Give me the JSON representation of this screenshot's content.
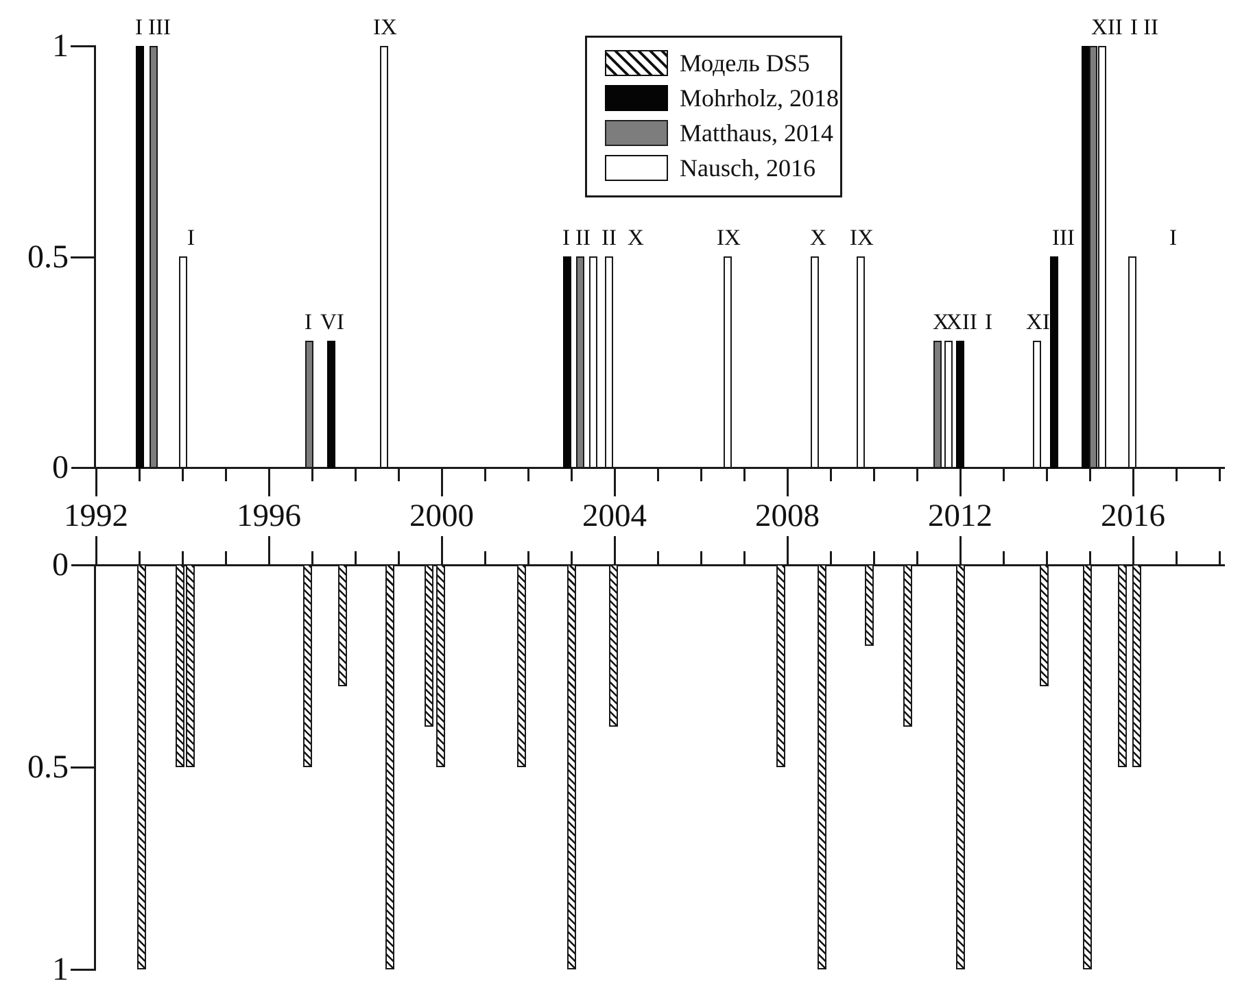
{
  "figure": {
    "background": "#ffffff",
    "colors": {
      "black": "#050505",
      "gray": "#7d7d7d",
      "white": "#ffffff",
      "outline": "#1a1a1a"
    }
  },
  "legend": {
    "items": [
      {
        "key": "model",
        "swatch": "hatched",
        "label": "Модель DS5"
      },
      {
        "key": "mohrholz",
        "swatch": "black",
        "label": "Mohrholz, 2018"
      },
      {
        "key": "matthaus",
        "swatch": "gray",
        "label": "Matthaus, 2014"
      },
      {
        "key": "nausch",
        "swatch": "white",
        "label": "Nausch, 2016"
      }
    ]
  },
  "chart_data": {
    "type": "bar",
    "title": "",
    "xlabel": "",
    "ylabel": "",
    "x_axis": {
      "range": [
        1991.95,
        2018.1
      ],
      "major_ticks": [
        1992,
        1996,
        2000,
        2004,
        2008,
        2012,
        2016
      ],
      "minor_tick_years": [
        1993,
        1994,
        1995,
        1997,
        1998,
        1999,
        2001,
        2002,
        2003,
        2005,
        2006,
        2007,
        2009,
        2010,
        2011,
        2013,
        2014,
        2015,
        2017,
        2018
      ]
    },
    "panels": [
      {
        "id": "upper",
        "orientation": "up",
        "ylim": [
          0,
          1
        ],
        "y_ticks": [
          {
            "v": 1,
            "label": "1"
          },
          {
            "v": 0.5,
            "label": "0.5"
          },
          {
            "v": 0,
            "label": "0"
          }
        ],
        "note": "observed inflow events; bar label = month (Roman numeral)",
        "bars": [
          {
            "x": 1993.02,
            "v": 1.0,
            "series": "mohrholz",
            "label": "I"
          },
          {
            "x": 1993.33,
            "v": 1.0,
            "series": "matthaus",
            "label": "III"
          },
          {
            "x": 1994.02,
            "v": 0.5,
            "series": "nausch",
            "label": "I"
          },
          {
            "x": 1996.93,
            "v": 0.3,
            "series": "matthaus",
            "label": "I"
          },
          {
            "x": 1997.45,
            "v": 0.3,
            "series": "mohrholz",
            "label": "VI"
          },
          {
            "x": 1998.67,
            "v": 1.0,
            "series": "nausch",
            "label": "IX"
          },
          {
            "x": 2002.9,
            "v": 0.5,
            "series": "mohrholz",
            "label": "I"
          },
          {
            "x": 2003.2,
            "v": 0.5,
            "series": "matthaus",
            "label": "II"
          },
          {
            "x": 2003.5,
            "v": 0.5,
            "series": "nausch",
            "label": "II"
          },
          {
            "x": 2003.88,
            "v": 0.5,
            "series": "nausch",
            "label": "X"
          },
          {
            "x": 2006.62,
            "v": 0.5,
            "series": "nausch",
            "label": "IX"
          },
          {
            "x": 2008.64,
            "v": 0.5,
            "series": "nausch",
            "label": "X"
          },
          {
            "x": 2009.7,
            "v": 0.5,
            "series": "nausch",
            "label": "IX"
          },
          {
            "x": 2011.48,
            "v": 0.3,
            "series": "matthaus",
            "label": "X"
          },
          {
            "x": 2011.73,
            "v": 0.3,
            "series": "nausch",
            "label": "XII"
          },
          {
            "x": 2012.0,
            "v": 0.3,
            "series": "mohrholz",
            "label": "I"
          },
          {
            "x": 2013.78,
            "v": 0.3,
            "series": "nausch",
            "label": "XI"
          },
          {
            "x": 2014.17,
            "v": 0.5,
            "series": "mohrholz",
            "label": "III"
          },
          {
            "x": 2014.9,
            "v": 1.0,
            "series": "mohrholz",
            "label": "XII"
          },
          {
            "x": 2015.08,
            "v": 1.0,
            "series": "matthaus",
            "label": "I"
          },
          {
            "x": 2015.28,
            "v": 1.0,
            "series": "nausch",
            "label": "II"
          },
          {
            "x": 2015.98,
            "v": 0.5,
            "series": "nausch",
            "label": "I"
          }
        ]
      },
      {
        "id": "lower",
        "orientation": "down",
        "ylim": [
          0,
          1
        ],
        "y_ticks": [
          {
            "v": 0,
            "label": "0"
          },
          {
            "v": 0.5,
            "label": "0.5"
          },
          {
            "v": 1,
            "label": "1"
          }
        ],
        "note": "Модель DS5 simulated inflow events (hatched, plotted downward)",
        "bars": [
          {
            "x": 1993.05,
            "v": 1.0,
            "series": "model"
          },
          {
            "x": 1993.95,
            "v": 0.5,
            "series": "model"
          },
          {
            "x": 1994.18,
            "v": 0.5,
            "series": "model"
          },
          {
            "x": 1996.9,
            "v": 0.5,
            "series": "model"
          },
          {
            "x": 1997.7,
            "v": 0.3,
            "series": "model"
          },
          {
            "x": 1998.8,
            "v": 1.0,
            "series": "model"
          },
          {
            "x": 1999.7,
            "v": 0.4,
            "series": "model"
          },
          {
            "x": 1999.98,
            "v": 0.5,
            "series": "model"
          },
          {
            "x": 2001.85,
            "v": 0.5,
            "series": "model"
          },
          {
            "x": 2003.0,
            "v": 1.0,
            "series": "model"
          },
          {
            "x": 2003.97,
            "v": 0.4,
            "series": "model"
          },
          {
            "x": 2007.85,
            "v": 0.5,
            "series": "model"
          },
          {
            "x": 2008.8,
            "v": 1.0,
            "series": "model"
          },
          {
            "x": 2009.9,
            "v": 0.2,
            "series": "model"
          },
          {
            "x": 2010.78,
            "v": 0.4,
            "series": "model"
          },
          {
            "x": 2012.0,
            "v": 1.0,
            "series": "model"
          },
          {
            "x": 2013.95,
            "v": 0.3,
            "series": "model"
          },
          {
            "x": 2014.95,
            "v": 1.0,
            "series": "model"
          },
          {
            "x": 2015.75,
            "v": 0.5,
            "series": "model"
          },
          {
            "x": 2016.08,
            "v": 0.5,
            "series": "model"
          }
        ]
      }
    ]
  }
}
